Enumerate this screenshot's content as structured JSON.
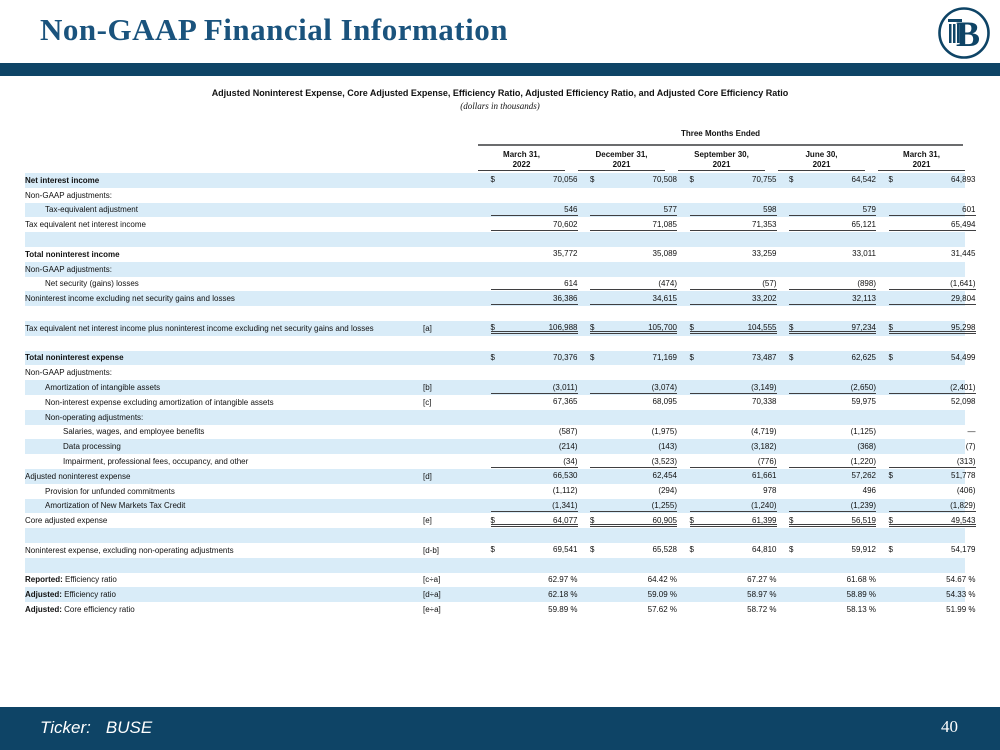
{
  "header": {
    "title": "Non-GAAP Financial Information",
    "logo": "busey-b-pillar-logo"
  },
  "colors": {
    "navy": "#0e4466",
    "title_blue": "#1a537d",
    "row_highlight": "#d9ecf8",
    "rule_dark": "#3f3f41",
    "rule_gray": "#6b6c6e"
  },
  "table": {
    "title": "Adjusted Noninterest Expense, Core Adjusted Expense, Efficiency Ratio, Adjusted Efficiency Ratio, and Adjusted Core Efficiency Ratio",
    "subtitle": "(dollars in thousands)",
    "period_header": "Three Months Ended",
    "columns": [
      {
        "line1": "March 31,",
        "line2": "2022"
      },
      {
        "line1": "December 31,",
        "line2": "2021"
      },
      {
        "line1": "September 30,",
        "line2": "2021"
      },
      {
        "line1": "June 30,",
        "line2": "2021"
      },
      {
        "line1": "March 31,",
        "line2": "2021"
      }
    ],
    "rows": [
      {
        "label": "Net interest income",
        "bold": true,
        "indent": 0,
        "bracket": "",
        "shade": true,
        "dollars": "all",
        "underline": "none",
        "values": [
          "70,056",
          "70,508",
          "70,755",
          "64,542",
          "64,893"
        ]
      },
      {
        "label": "Non-GAAP adjustments:",
        "indent": 0,
        "bracket": "",
        "shade": false,
        "values": null
      },
      {
        "label": "Tax-equivalent adjustment",
        "indent": 1,
        "bracket": "",
        "shade": true,
        "dollars": "none",
        "underline": "single",
        "values": [
          "546",
          "577",
          "598",
          "579",
          "601"
        ]
      },
      {
        "label": "Tax equivalent net interest income",
        "indent": 0,
        "bracket": "",
        "shade": false,
        "dollars": "none",
        "underline": "single",
        "values": [
          "70,602",
          "71,085",
          "71,353",
          "65,121",
          "65,494"
        ]
      },
      {
        "label": "",
        "indent": 0,
        "bracket": "",
        "shade": true,
        "values": null
      },
      {
        "label": "Total noninterest income",
        "bold": true,
        "indent": 0,
        "bracket": "",
        "shade": false,
        "dollars": "none",
        "underline": "none",
        "values": [
          "35,772",
          "35,089",
          "33,259",
          "33,011",
          "31,445"
        ]
      },
      {
        "label": "Non-GAAP adjustments:",
        "indent": 0,
        "bracket": "",
        "shade": true,
        "values": null
      },
      {
        "label": "Net security (gains) losses",
        "indent": 1,
        "bracket": "",
        "shade": false,
        "dollars": "none",
        "underline": "single",
        "values": [
          "614",
          "(474)",
          "(57)",
          "(898)",
          "(1,641)"
        ]
      },
      {
        "label": "Noninterest income excluding net security gains and losses",
        "indent": 0,
        "bracket": "",
        "shade": true,
        "dollars": "none",
        "underline": "single",
        "values": [
          "36,386",
          "34,615",
          "33,202",
          "32,113",
          "29,804"
        ]
      },
      {
        "label": "",
        "indent": 0,
        "bracket": "",
        "shade": false,
        "values": null
      },
      {
        "label": "Tax equivalent net interest income plus noninterest income excluding net security gains and losses",
        "indent": 0,
        "bracket": "[a]",
        "shade": true,
        "dollars": "all",
        "underline": "double",
        "values": [
          "106,988",
          "105,700",
          "104,555",
          "97,234",
          "95,298"
        ]
      },
      {
        "label": "",
        "indent": 0,
        "bracket": "",
        "shade": false,
        "values": null
      },
      {
        "label": "Total noninterest expense",
        "bold": true,
        "indent": 0,
        "bracket": "",
        "shade": true,
        "dollars": "all",
        "underline": "none",
        "values": [
          "70,376",
          "71,169",
          "73,487",
          "62,625",
          "54,499"
        ]
      },
      {
        "label": "Non-GAAP adjustments:",
        "indent": 0,
        "bracket": "",
        "shade": false,
        "values": null
      },
      {
        "label": "Amortization of intangible assets",
        "indent": 1,
        "bracket": "[b]",
        "shade": true,
        "dollars": "none",
        "underline": "single",
        "values": [
          "(3,011)",
          "(3,074)",
          "(3,149)",
          "(2,650)",
          "(2,401)"
        ]
      },
      {
        "label": "Non-interest expense excluding amortization of intangible assets",
        "indent": 1,
        "bracket": "[c]",
        "shade": false,
        "dollars": "none",
        "underline": "none",
        "values": [
          "67,365",
          "68,095",
          "70,338",
          "59,975",
          "52,098"
        ]
      },
      {
        "label": "Non-operating adjustments:",
        "indent": 1,
        "bracket": "",
        "shade": true,
        "values": null
      },
      {
        "label": "Salaries, wages, and employee benefits",
        "indent": 2,
        "bracket": "",
        "shade": false,
        "dollars": "none",
        "underline": "none",
        "values": [
          "(587)",
          "(1,975)",
          "(4,719)",
          "(1,125)",
          "—"
        ]
      },
      {
        "label": "Data processing",
        "indent": 2,
        "bracket": "",
        "shade": true,
        "dollars": "none",
        "underline": "none",
        "values": [
          "(214)",
          "(143)",
          "(3,182)",
          "(368)",
          "(7)"
        ]
      },
      {
        "label": "Impairment, professional fees, occupancy, and other",
        "indent": 2,
        "bracket": "",
        "shade": false,
        "dollars": "none",
        "underline": "single",
        "values": [
          "(34)",
          "(3,523)",
          "(776)",
          "(1,220)",
          "(313)"
        ]
      },
      {
        "label": "Adjusted noninterest expense",
        "indent": 0,
        "bracket": "[d]",
        "shade": true,
        "dollars": "last",
        "underline": "none",
        "values": [
          "66,530",
          "62,454",
          "61,661",
          "57,262",
          "51,778"
        ]
      },
      {
        "label": "Provision for unfunded commitments",
        "indent": 1,
        "bracket": "",
        "shade": false,
        "dollars": "none",
        "underline": "none",
        "values": [
          "(1,112)",
          "(294)",
          "978",
          "496",
          "(406)"
        ]
      },
      {
        "label": "Amortization of New Markets Tax Credit",
        "indent": 1,
        "bracket": "",
        "shade": true,
        "dollars": "none",
        "underline": "single",
        "values": [
          "(1,341)",
          "(1,255)",
          "(1,240)",
          "(1,239)",
          "(1,829)"
        ]
      },
      {
        "label": "Core adjusted expense",
        "indent": 0,
        "bracket": "[e]",
        "shade": false,
        "dollars": "all",
        "underline": "double",
        "values": [
          "64,077",
          "60,905",
          "61,399",
          "56,519",
          "49,543"
        ]
      },
      {
        "label": "",
        "indent": 0,
        "bracket": "",
        "shade": true,
        "values": null
      },
      {
        "label": "Noninterest expense, excluding non-operating adjustments",
        "indent": 0,
        "bracket": "[d-b]",
        "shade": false,
        "dollars": "all",
        "underline": "none",
        "values": [
          "69,541",
          "65,528",
          "64,810",
          "59,912",
          "54,179"
        ]
      },
      {
        "label": "",
        "indent": 0,
        "bracket": "",
        "shade": true,
        "values": null
      },
      {
        "prefix": "Reported:",
        "label": " Efficiency ratio",
        "indent": 0,
        "bracket": "[c÷a]",
        "shade": false,
        "dollars": "none",
        "underline": "none",
        "values": [
          "62.97 %",
          "64.42 %",
          "67.27 %",
          "61.68 %",
          "54.67 %"
        ]
      },
      {
        "prefix": "Adjusted:",
        "label": " Efficiency ratio",
        "indent": 0,
        "bracket": "[d÷a]",
        "shade": true,
        "dollars": "none",
        "underline": "none",
        "values": [
          "62.18 %",
          "59.09 %",
          "58.97 %",
          "58.89 %",
          "54.33 %"
        ]
      },
      {
        "prefix": "Adjusted:",
        "label": " Core efficiency ratio",
        "indent": 0,
        "bracket": "[e÷a]",
        "shade": false,
        "dollars": "none",
        "underline": "none",
        "values": [
          "59.89 %",
          "57.62 %",
          "58.72 %",
          "58.13 %",
          "51.99 %"
        ]
      }
    ]
  },
  "footer": {
    "ticker_label": "Ticker:",
    "ticker_value": "BUSE",
    "page": "40"
  }
}
